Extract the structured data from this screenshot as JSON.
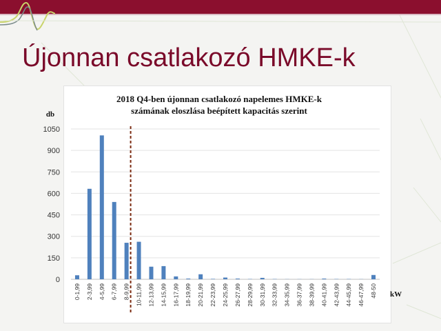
{
  "slide": {
    "title": "Újonnan csatlakozó HMKE-k"
  },
  "colors": {
    "brand": "#8b0f2e",
    "title": "#7a0a2a",
    "bar": "#4f81bd",
    "marker_line": "#7b2a10"
  },
  "chart_data": {
    "type": "bar",
    "title_line1": "2018 Q4-ben újonnan csatlakozó napelemes HMKE-k",
    "title_line2": "számának eloszlása beépített kapacitás szerint",
    "ylabel": "db",
    "xlabel": "kW",
    "ylim": [
      0,
      1050
    ],
    "yticks": [
      "0",
      "150",
      "300",
      "450",
      "600",
      "750",
      "900",
      "1050"
    ],
    "ytick_values": [
      0,
      150,
      300,
      450,
      600,
      750,
      900,
      1050
    ],
    "grid": true,
    "legend": "none",
    "categories": [
      "0-1,99",
      "2-3,99",
      "4-5,99",
      "6-7,99",
      "8-9,99",
      "10-11,99",
      "12-13,99",
      "14-15,99",
      "16-17,99",
      "18-19,99",
      "20-21,99",
      "22-23,99",
      "24-25,99",
      "26-27,99",
      "28-29,99",
      "30-31,99",
      "32-33,99",
      "34-35,99",
      "36-37,99",
      "38-39,99",
      "40-41,99",
      "42-43,99",
      "44-45,99",
      "46-47,99",
      "48-50"
    ],
    "values": [
      28,
      632,
      1005,
      540,
      255,
      262,
      88,
      92,
      20,
      5,
      35,
      3,
      12,
      5,
      2,
      10,
      2,
      1,
      1,
      1,
      5,
      2,
      2,
      1,
      30
    ],
    "marker_after_category": "8-9,99"
  }
}
